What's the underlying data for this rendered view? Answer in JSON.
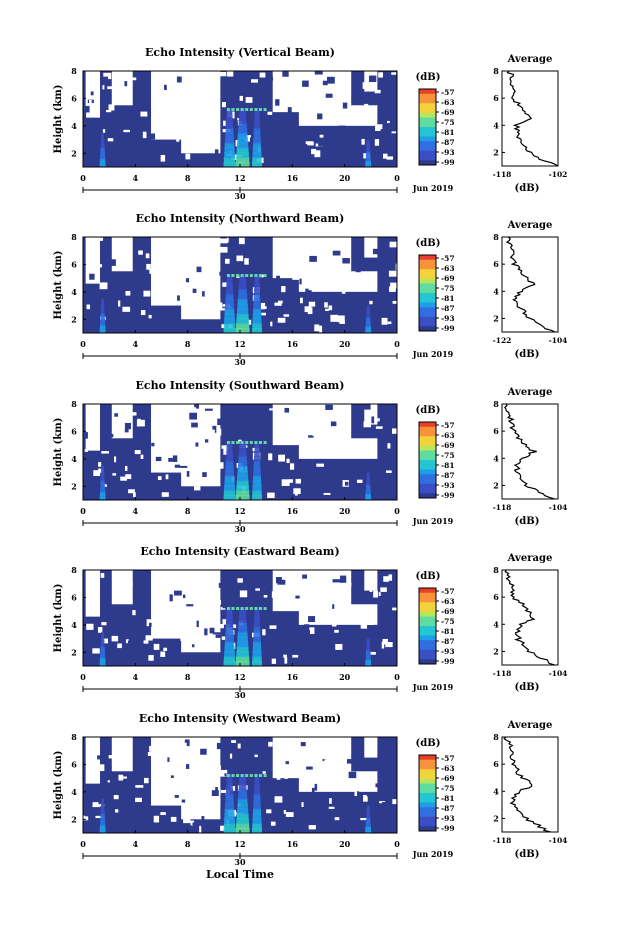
{
  "figure": {
    "x_axis_title": "Local Time",
    "date_label": "Jun 2019",
    "colorbar_unit": "(dB)",
    "profile_title": "Average",
    "profile_xlabel": "(dB)",
    "colors": {
      "background_fill": "#2e3a8c",
      "no_data": "#ffffff",
      "colormap": [
        "#2e3a8c",
        "#3b4fc4",
        "#2f6fe0",
        "#1e9ee8",
        "#23c6d2",
        "#5fdca0",
        "#b8e65a",
        "#f2d33a",
        "#f7933a",
        "#e8402a"
      ]
    }
  },
  "chart_data": [
    {
      "type": "heatmap",
      "title": "Echo Intensity (Vertical Beam)",
      "ylabel": "Height (km)",
      "xlabel": "Local Time",
      "x_ticks": [
        "0",
        "4",
        "8",
        "12",
        "16",
        "20",
        "0"
      ],
      "x_date_tick": "30",
      "xlim_hours": [
        0,
        24
      ],
      "y_ticks": [
        "2",
        "4",
        "6",
        "8"
      ],
      "ylim_km": [
        1,
        8
      ],
      "colorbar_ticks": [
        "-57",
        "-63",
        "-69",
        "-75",
        "-81",
        "-87",
        "-93",
        "-99"
      ],
      "colorbar_range_db": [
        -99,
        -57
      ],
      "profile": {
        "title": "Average",
        "x_ticks": [
          "-118",
          "-102"
        ],
        "xlim_db": [
          -118,
          -102
        ],
        "y_ticks": [
          "2",
          "4",
          "6",
          "8"
        ],
        "height_km": [
          1.0,
          1.5,
          2.0,
          2.5,
          3.0,
          3.5,
          4.0,
          4.5,
          5.0,
          5.5,
          6.0,
          6.5,
          7.0,
          7.5,
          8.0
        ],
        "db": [
          -102,
          -107,
          -110,
          -112,
          -113,
          -113.5,
          -114,
          -110,
          -112,
          -113,
          -115,
          -114,
          -116,
          -115,
          -116
        ]
      }
    },
    {
      "type": "heatmap",
      "title": "Echo Intensity (Northward Beam)",
      "ylabel": "Height (km)",
      "xlabel": "Local Time",
      "x_ticks": [
        "0",
        "4",
        "8",
        "12",
        "16",
        "20",
        "0"
      ],
      "x_date_tick": "30",
      "xlim_hours": [
        0,
        24
      ],
      "y_ticks": [
        "2",
        "4",
        "6",
        "8"
      ],
      "ylim_km": [
        1,
        8
      ],
      "colorbar_ticks": [
        "-57",
        "-63",
        "-69",
        "-75",
        "-81",
        "-87",
        "-93",
        "-99"
      ],
      "colorbar_range_db": [
        -99,
        -57
      ],
      "profile": {
        "title": "Average",
        "x_ticks": [
          "-122",
          "-104"
        ],
        "xlim_db": [
          -122,
          -104
        ],
        "y_ticks": [
          "2",
          "4",
          "6",
          "8"
        ],
        "height_km": [
          1.0,
          1.5,
          2.0,
          2.5,
          3.0,
          3.5,
          4.0,
          4.5,
          5.0,
          5.5,
          6.0,
          6.5,
          7.0,
          7.5,
          8.0
        ],
        "db": [
          -105,
          -110,
          -113,
          -115,
          -117,
          -118,
          -116,
          -112,
          -114,
          -116,
          -118,
          -118.5,
          -119,
          -119.5,
          -120
        ]
      }
    },
    {
      "type": "heatmap",
      "title": "Echo Intensity (Southward Beam)",
      "ylabel": "Height (km)",
      "xlabel": "Local Time",
      "x_ticks": [
        "0",
        "4",
        "8",
        "12",
        "16",
        "20",
        "0"
      ],
      "x_date_tick": "30",
      "xlim_hours": [
        0,
        24
      ],
      "y_ticks": [
        "2",
        "4",
        "6",
        "8"
      ],
      "ylim_km": [
        1,
        8
      ],
      "colorbar_ticks": [
        "-57",
        "-63",
        "-69",
        "-75",
        "-81",
        "-87",
        "-93",
        "-99"
      ],
      "colorbar_range_db": [
        -99,
        -57
      ],
      "profile": {
        "title": "Average",
        "x_ticks": [
          "-118",
          "-104"
        ],
        "xlim_db": [
          -118,
          -104
        ],
        "y_ticks": [
          "2",
          "4",
          "6",
          "8"
        ],
        "height_km": [
          1.0,
          1.5,
          2.0,
          2.5,
          3.0,
          3.5,
          4.0,
          4.5,
          5.0,
          5.5,
          6.0,
          6.5,
          7.0,
          7.5,
          8.0
        ],
        "db": [
          -105,
          -109,
          -112,
          -113,
          -114,
          -114.5,
          -113,
          -110,
          -112,
          -114,
          -115,
          -115.5,
          -116,
          -116.5,
          -117
        ]
      }
    },
    {
      "type": "heatmap",
      "title": "Echo Intensity (Eastward Beam)",
      "ylabel": "Height (km)",
      "xlabel": "Local Time",
      "x_ticks": [
        "0",
        "4",
        "8",
        "12",
        "16",
        "20",
        "0"
      ],
      "x_date_tick": "30",
      "xlim_hours": [
        0,
        24
      ],
      "y_ticks": [
        "2",
        "4",
        "6",
        "8"
      ],
      "ylim_km": [
        1,
        8
      ],
      "colorbar_ticks": [
        "-57",
        "-63",
        "-69",
        "-75",
        "-81",
        "-87",
        "-93",
        "-99"
      ],
      "colorbar_range_db": [
        -99,
        -57
      ],
      "profile": {
        "title": "Average",
        "x_ticks": [
          "-118",
          "-104"
        ],
        "xlim_db": [
          -118,
          -104
        ],
        "y_ticks": [
          "2",
          "4",
          "6",
          "8"
        ],
        "height_km": [
          1.0,
          1.5,
          2.0,
          2.5,
          3.0,
          3.5,
          4.0,
          4.5,
          5.0,
          5.5,
          6.0,
          6.5,
          7.0,
          7.5,
          8.0
        ],
        "db": [
          -105,
          -108,
          -111,
          -113,
          -114,
          -114,
          -113,
          -110,
          -112,
          -113,
          -115,
          -115,
          -116,
          -116.5,
          -117
        ]
      }
    },
    {
      "type": "heatmap",
      "title": "Echo Intensity (Westward Beam)",
      "ylabel": "Height (km)",
      "xlabel": "Local Time",
      "x_ticks": [
        "0",
        "4",
        "8",
        "12",
        "16",
        "20",
        "0"
      ],
      "x_date_tick": "30",
      "xlim_hours": [
        0,
        24
      ],
      "y_ticks": [
        "2",
        "4",
        "6",
        "8"
      ],
      "ylim_km": [
        1,
        8
      ],
      "colorbar_ticks": [
        "-57",
        "-63",
        "-69",
        "-75",
        "-81",
        "-87",
        "-93",
        "-99"
      ],
      "colorbar_range_db": [
        -99,
        -57
      ],
      "profile": {
        "title": "Average",
        "x_ticks": [
          "-118",
          "-104"
        ],
        "xlim_db": [
          -118,
          -104
        ],
        "y_ticks": [
          "2",
          "4",
          "6",
          "8"
        ],
        "height_km": [
          1.0,
          1.5,
          2.0,
          2.5,
          3.0,
          3.5,
          4.0,
          4.5,
          5.0,
          5.5,
          6.0,
          6.5,
          7.0,
          7.5,
          8.0
        ],
        "db": [
          -106,
          -109,
          -112,
          -114,
          -115,
          -115,
          -114,
          -110,
          -113,
          -114,
          -115,
          -115.5,
          -116,
          -116,
          -117
        ]
      }
    }
  ]
}
